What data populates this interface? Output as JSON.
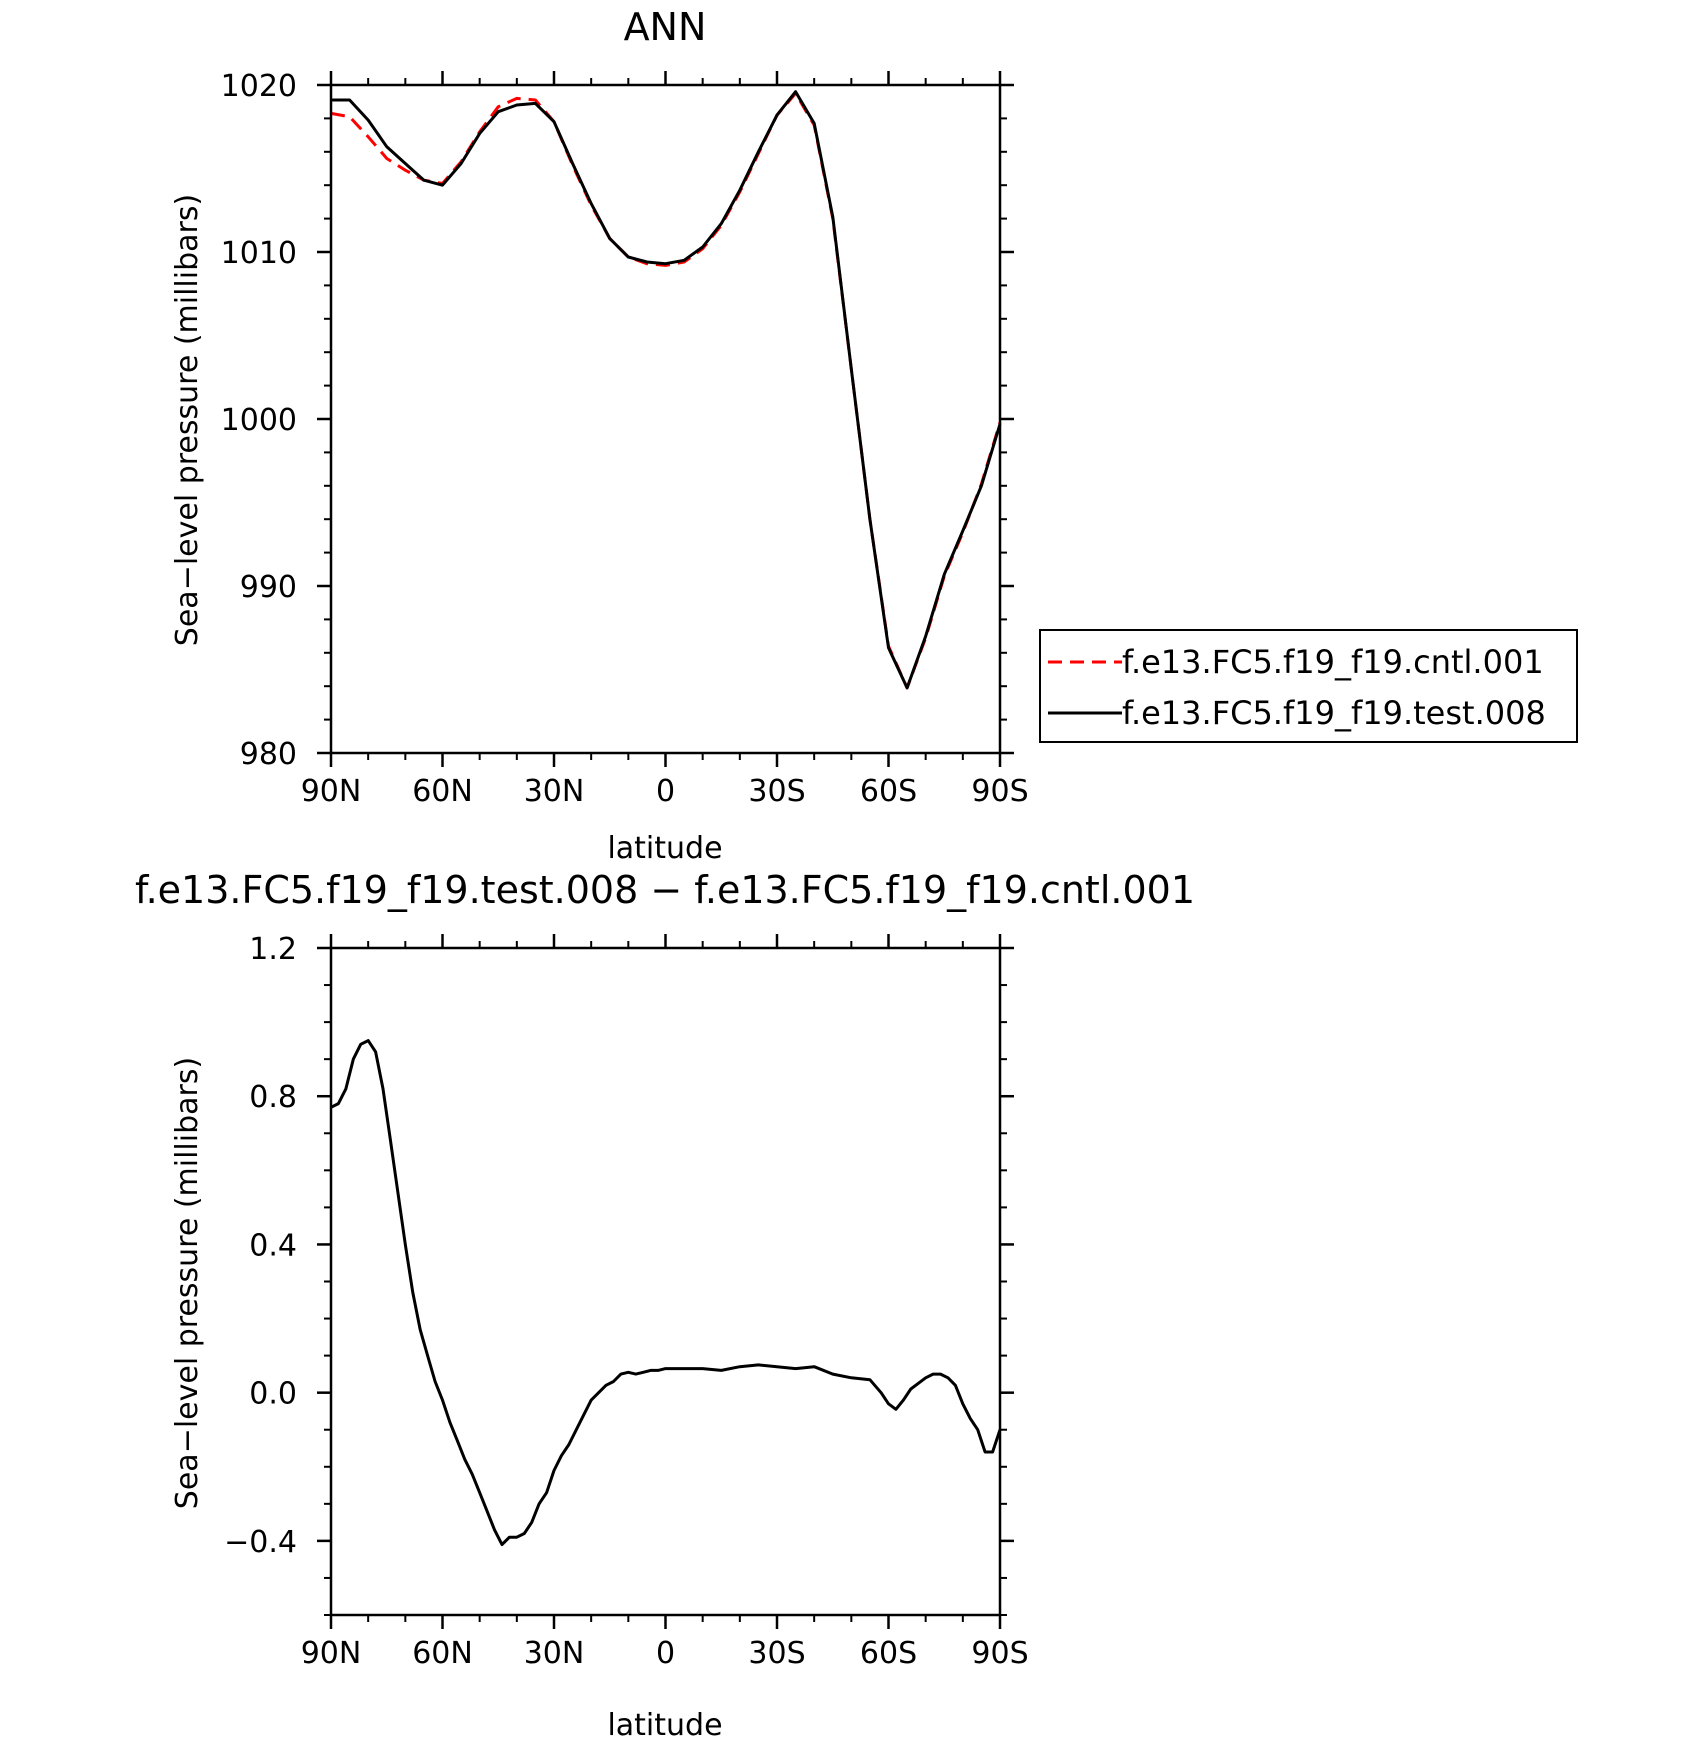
{
  "chart_data": [
    {
      "type": "line",
      "title": "ANN",
      "xlabel": "latitude",
      "ylabel": "Sea−level pressure (millibars)",
      "xlim": [
        90,
        -90
      ],
      "ylim": [
        980,
        1020
      ],
      "xticks": [
        90,
        60,
        30,
        0,
        -30,
        -60,
        -90
      ],
      "xtick_labels": [
        "90N",
        "60N",
        "30N",
        "0",
        "30S",
        "60S",
        "90S"
      ],
      "yticks": [
        980,
        990,
        1000,
        1010,
        1020
      ],
      "ytick_labels": [
        "980",
        "990",
        "1000",
        "1010",
        "1020"
      ],
      "legend": "right",
      "grid": false,
      "x": [
        90,
        85,
        80,
        75,
        70,
        65,
        60,
        55,
        50,
        45,
        40,
        35,
        30,
        25,
        20,
        15,
        10,
        5,
        0,
        -5,
        -10,
        -15,
        -20,
        -25,
        -30,
        -35,
        -40,
        -45,
        -50,
        -55,
        -60,
        -65,
        -70,
        -75,
        -80,
        -85,
        -90
      ],
      "series": [
        {
          "name": "f.e13.FC5.f19_f19.cntl.001",
          "color": "#ff0000",
          "dash": "dashed",
          "values": [
            1018.3,
            1018.1,
            1016.9,
            1015.6,
            1014.9,
            1014.3,
            1014.1,
            1015.4,
            1017.2,
            1018.7,
            1019.2,
            1019.1,
            1017.8,
            1015.2,
            1012.8,
            1010.8,
            1009.7,
            1009.3,
            1009.2,
            1009.4,
            1010.2,
            1011.6,
            1013.6,
            1015.9,
            1018.2,
            1019.5,
            1017.6,
            1012.0,
            1003.0,
            994.0,
            986.4,
            983.9,
            986.9,
            990.6,
            993.2,
            996.1,
            999.8
          ]
        },
        {
          "name": "f.e13.FC5.f19_f19.test.008",
          "color": "#000000",
          "dash": "solid",
          "values": [
            1019.1,
            1019.1,
            1017.9,
            1016.3,
            1015.3,
            1014.3,
            1014.0,
            1015.3,
            1017.1,
            1018.4,
            1018.8,
            1018.9,
            1017.8,
            1015.3,
            1012.9,
            1010.8,
            1009.7,
            1009.4,
            1009.3,
            1009.5,
            1010.3,
            1011.7,
            1013.7,
            1016.0,
            1018.2,
            1019.6,
            1017.7,
            1012.1,
            1003.0,
            994.0,
            986.3,
            983.9,
            987.0,
            990.7,
            993.3,
            996.0,
            999.7
          ]
        }
      ]
    },
    {
      "type": "line",
      "title": "f.e13.FC5.f19_f19.test.008 − f.e13.FC5.f19_f19.cntl.001",
      "xlabel": "latitude",
      "ylabel": "Sea−level pressure (millibars)",
      "xlim": [
        90,
        -90
      ],
      "ylim": [
        -0.6,
        1.2
      ],
      "xticks": [
        90,
        60,
        30,
        0,
        -30,
        -60,
        -90
      ],
      "xtick_labels": [
        "90N",
        "60N",
        "30N",
        "0",
        "30S",
        "60S",
        "90S"
      ],
      "yticks": [
        -0.4,
        0.0,
        0.4,
        0.8,
        1.2
      ],
      "ytick_labels": [
        "−0.4",
        "0.0",
        "0.4",
        "0.8",
        "1.2"
      ],
      "grid": false,
      "x": [
        90,
        88,
        86,
        84,
        82,
        80,
        78,
        76,
        74,
        72,
        70,
        68,
        66,
        64,
        62,
        60,
        58,
        56,
        54,
        52,
        50,
        48,
        46,
        44,
        42,
        40,
        38,
        36,
        34,
        32,
        30,
        28,
        26,
        24,
        22,
        20,
        18,
        16,
        14,
        12,
        10,
        8,
        6,
        4,
        2,
        0,
        -5,
        -10,
        -15,
        -20,
        -25,
        -30,
        -35,
        -40,
        -45,
        -50,
        -55,
        -58,
        -60,
        -62,
        -64,
        -66,
        -68,
        -70,
        -72,
        -74,
        -76,
        -78,
        -80,
        -82,
        -84,
        -86,
        -88,
        -90
      ],
      "series": [
        {
          "name": "",
          "color": "#000000",
          "dash": "solid",
          "values": [
            0.77,
            0.78,
            0.82,
            0.9,
            0.94,
            0.95,
            0.92,
            0.82,
            0.68,
            0.54,
            0.4,
            0.27,
            0.17,
            0.1,
            0.03,
            -0.02,
            -0.08,
            -0.13,
            -0.18,
            -0.22,
            -0.27,
            -0.32,
            -0.37,
            -0.41,
            -0.39,
            -0.39,
            -0.38,
            -0.35,
            -0.3,
            -0.27,
            -0.21,
            -0.17,
            -0.14,
            -0.1,
            -0.06,
            -0.02,
            0.0,
            0.02,
            0.03,
            0.05,
            0.055,
            0.05,
            0.055,
            0.06,
            0.06,
            0.065,
            0.065,
            0.065,
            0.06,
            0.07,
            0.075,
            0.07,
            0.065,
            0.07,
            0.05,
            0.04,
            0.035,
            0.0,
            -0.03,
            -0.045,
            -0.02,
            0.01,
            0.025,
            0.04,
            0.05,
            0.05,
            0.04,
            0.02,
            -0.03,
            -0.07,
            -0.1,
            -0.16,
            -0.16,
            -0.1
          ]
        }
      ]
    }
  ]
}
